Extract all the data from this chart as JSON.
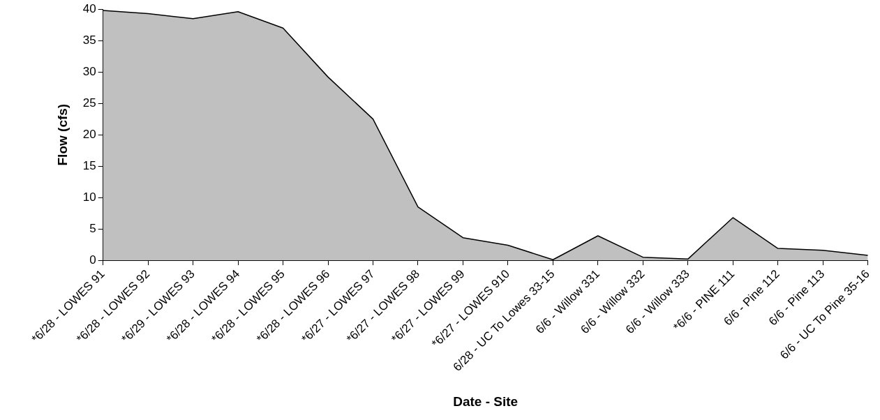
{
  "chart_data": {
    "type": "area",
    "xlabel": "Date - Site",
    "ylabel": "Flow (cfs)",
    "categories": [
      "*6/28 - LOWES 91",
      "*6/28 - LOWES 92",
      "*6/29 - LOWES 93",
      "*6/28 - LOWES 94",
      "*6/28 - LOWES 95",
      "*6/28 - LOWES 96",
      "*6/27 - LOWES 97",
      "*6/27 - LOWES 98",
      "*6/27 - LOWES 99",
      "*6/27 - LOWES 910",
      "6/28 - UC To Lowes 33-15",
      "6/6 - Willow 331",
      "6/6 - Willow 332",
      "6/6 - Willow 333",
      "*6/6 - PINE 111",
      "6/6 - Pine 112",
      "6/6 - Pine 113",
      "6/6 - UC To Pine 35-16"
    ],
    "values": [
      39.8,
      39.3,
      38.5,
      39.6,
      37.0,
      29.2,
      22.5,
      8.5,
      3.6,
      2.4,
      0.1,
      3.9,
      0.5,
      0.2,
      6.8,
      1.9,
      1.6,
      0.8
    ],
    "color": "#c0c0c0",
    "ylim": [
      0,
      40
    ],
    "yticks": [
      0,
      5,
      10,
      15,
      20,
      25,
      30,
      35,
      40
    ],
    "grid": false,
    "legend": false
  }
}
